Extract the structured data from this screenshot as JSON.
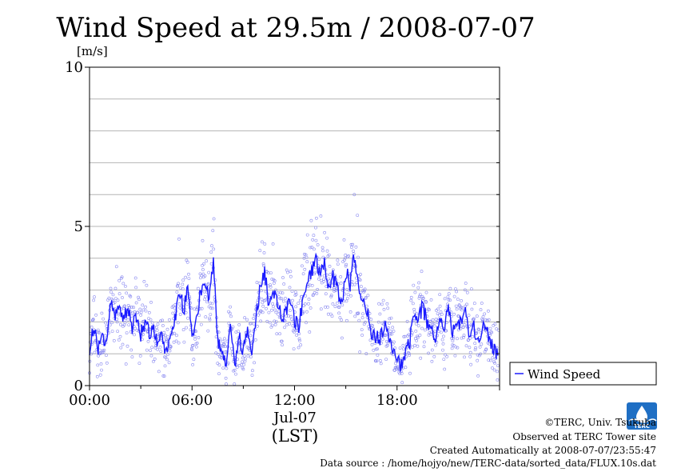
{
  "chart_data": {
    "type": "scatter",
    "title": "Wind Speed at 29.5m / 2008-07-07",
    "ylabel": "[m/s]",
    "date_label": "Jul-07",
    "xlabel": "(LST)",
    "x_ticks": [
      "00:00",
      "06:00",
      "12:00",
      "18:00"
    ],
    "x_tick_hours": [
      0,
      6,
      12,
      18
    ],
    "xlim_hours": [
      0,
      24
    ],
    "y_ticks": [
      0,
      5,
      10
    ],
    "ylim": [
      0,
      10
    ],
    "y_grid_step": 1,
    "grid": true,
    "legend_position": "right",
    "series": [
      {
        "name": "Wind Speed",
        "color": "#1a1aff",
        "point_color": "#8a8af0",
        "x_hours": [
          0,
          0.25,
          0.5,
          0.75,
          1,
          1.25,
          1.5,
          1.75,
          2,
          2.25,
          2.5,
          2.75,
          3,
          3.25,
          3.5,
          3.75,
          4,
          4.25,
          4.5,
          4.75,
          5,
          5.25,
          5.5,
          5.75,
          6,
          6.25,
          6.5,
          6.75,
          7,
          7.25,
          7.5,
          7.75,
          8,
          8.25,
          8.5,
          8.75,
          9,
          9.25,
          9.5,
          9.75,
          10,
          10.25,
          10.5,
          10.75,
          11,
          11.25,
          11.5,
          11.75,
          12,
          12.25,
          12.5,
          12.75,
          13,
          13.25,
          13.5,
          13.75,
          14,
          14.25,
          14.5,
          14.75,
          15,
          15.25,
          15.5,
          15.75,
          16,
          16.25,
          16.5,
          16.75,
          17,
          17.25,
          17.5,
          17.75,
          18,
          18.25,
          18.5,
          18.75,
          19,
          19.25,
          19.5,
          19.75,
          20,
          20.25,
          20.5,
          20.75,
          21,
          21.25,
          21.5,
          21.75,
          22,
          22.25,
          22.5,
          22.75,
          23,
          23.25,
          23.5,
          23.75
        ],
        "values": [
          1.2,
          1.8,
          1.1,
          1.5,
          1.4,
          2.6,
          2.2,
          2.4,
          2.1,
          2.5,
          1.8,
          2.2,
          1.6,
          2.0,
          1.7,
          1.8,
          1.3,
          1.5,
          1.0,
          1.6,
          2.0,
          3.0,
          2.3,
          3.2,
          1.5,
          2.1,
          2.9,
          3.3,
          2.6,
          3.9,
          1.4,
          1.1,
          0.6,
          2.1,
          0.5,
          1.6,
          1.1,
          1.8,
          0.8,
          2.2,
          3.1,
          3.6,
          2.5,
          2.9,
          2.6,
          2.2,
          2.3,
          2.8,
          2.1,
          1.8,
          2.8,
          3.3,
          3.6,
          3.9,
          3.4,
          4.0,
          3.0,
          3.4,
          3.1,
          2.5,
          3.6,
          3.2,
          4.1,
          3.0,
          2.6,
          2.3,
          1.7,
          1.5,
          1.5,
          1.9,
          1.6,
          1.2,
          0.8,
          0.6,
          1.0,
          1.4,
          2.3,
          2.1,
          2.5,
          2.0,
          1.8,
          1.5,
          2.2,
          1.8,
          2.4,
          1.6,
          2.0,
          1.9,
          2.3,
          1.5,
          1.8,
          1.3,
          1.9,
          1.7,
          1.4,
          1.0
        ]
      }
    ]
  },
  "credits": {
    "copyright": "©TERC, Univ. Tsukuba",
    "observed": "Observed at TERC Tower site",
    "created": "Created Automatically at 2008-07-07/23:55:47",
    "source": "Data source : /home/hojyo/new/TERC-data/sorted_data/FLUX.10s.dat",
    "logo_text": "TERC",
    "logo_color": "#1f6fc4"
  }
}
